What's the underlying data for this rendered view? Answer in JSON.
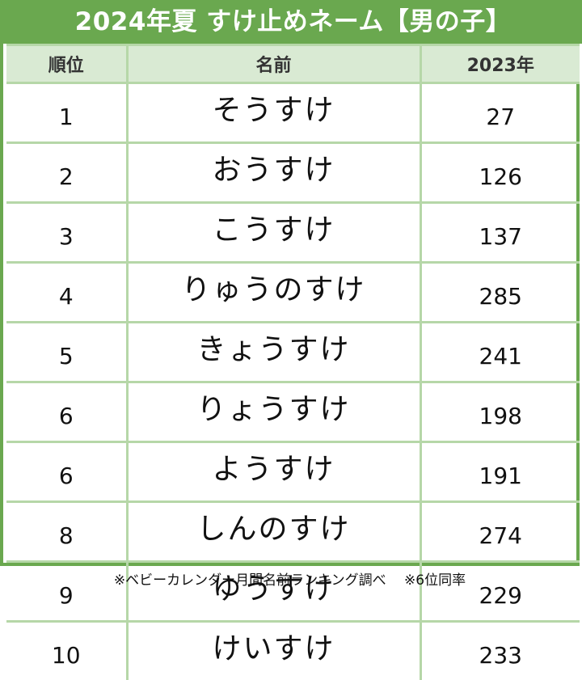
{
  "title": "2024年夏 すけ止めネーム【男の子】",
  "table": {
    "headers": {
      "rank": "順位",
      "name": "名前",
      "prev_year": "2023年"
    },
    "rows": [
      {
        "rank": "1",
        "name": "そうすけ",
        "prev_year": "27"
      },
      {
        "rank": "2",
        "name": "おうすけ",
        "prev_year": "126"
      },
      {
        "rank": "3",
        "name": "こうすけ",
        "prev_year": "137"
      },
      {
        "rank": "4",
        "name": "りゅうのすけ",
        "prev_year": "285"
      },
      {
        "rank": "5",
        "name": "きょうすけ",
        "prev_year": "241"
      },
      {
        "rank": "6",
        "name": "りょうすけ",
        "prev_year": "198"
      },
      {
        "rank": "6",
        "name": "ようすけ",
        "prev_year": "191"
      },
      {
        "rank": "8",
        "name": "しんのすけ",
        "prev_year": "274"
      },
      {
        "rank": "9",
        "name": "ゆうすけ",
        "prev_year": "229"
      },
      {
        "rank": "10",
        "name": "けいすけ",
        "prev_year": "233"
      }
    ]
  },
  "footnote": "※ベビーカレンダー月間名前ランキング調べ　 ※6位同率",
  "colors": {
    "title_bg": "#6aa84f",
    "header_bg": "#d9ead3",
    "grid_line": "#b6d7a8",
    "title_text": "#ffffff"
  }
}
